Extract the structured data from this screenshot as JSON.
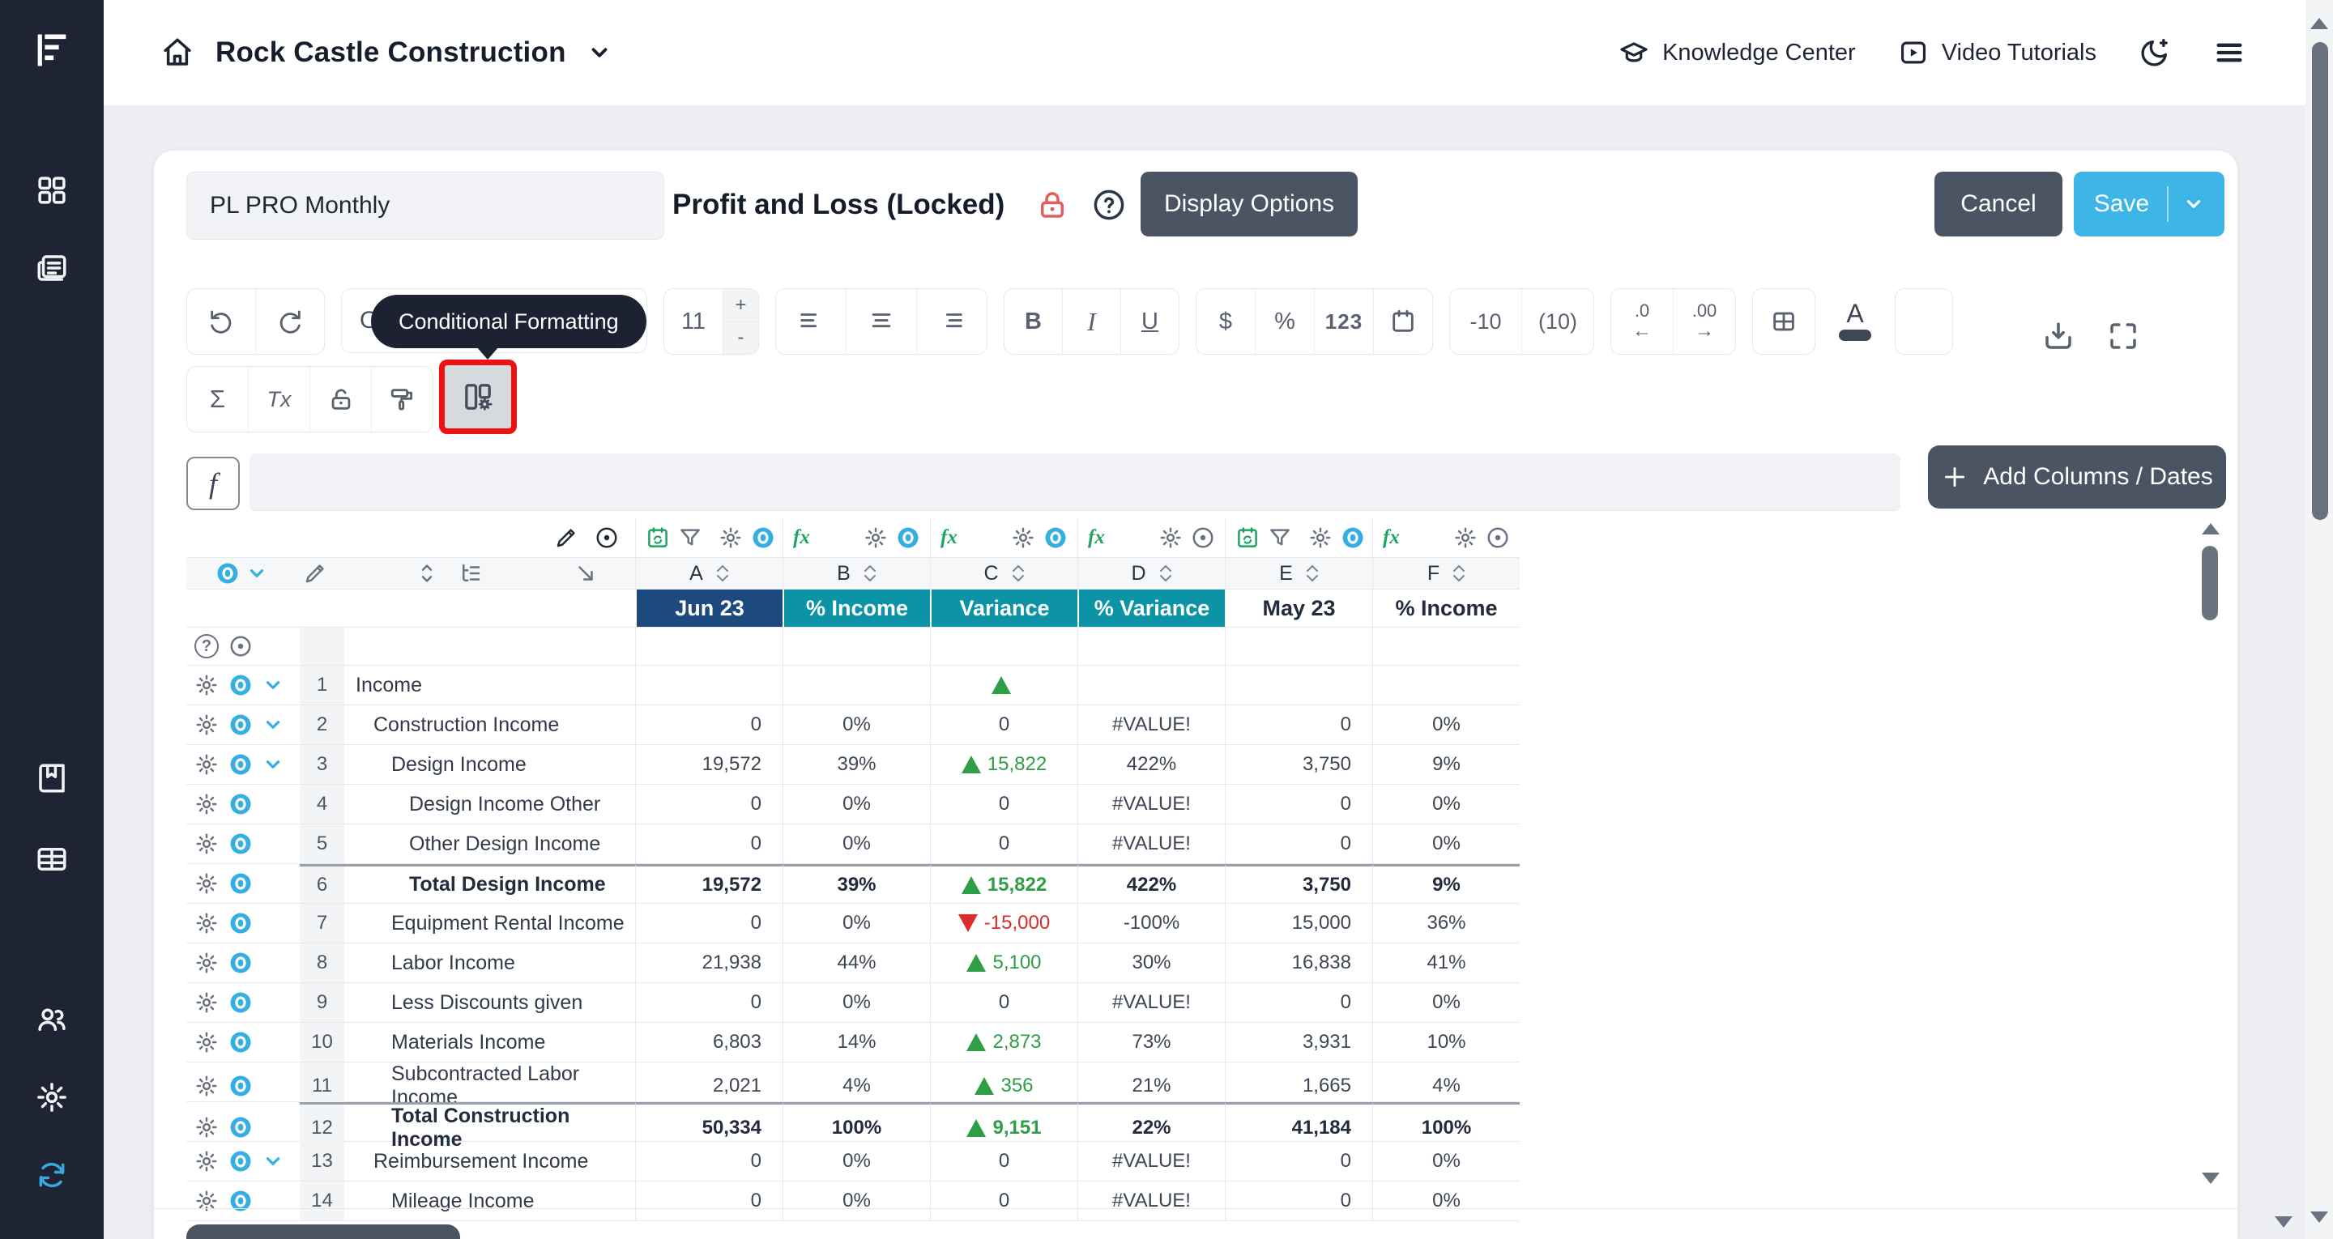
{
  "topbar": {
    "company": "Rock Castle Construction",
    "knowledge_center": "Knowledge Center",
    "video_tutorials": "Video Tutorials"
  },
  "header": {
    "report_name": "PL PRO Monthly",
    "title": "Profit and Loss (Locked)",
    "display_options": "Display Options",
    "cancel": "Cancel",
    "save": "Save"
  },
  "toolbar": {
    "dropdown_label": "Op",
    "tooltip": "Conditional Formatting",
    "font_size": "11",
    "size_plus": "+",
    "size_minus": "-",
    "bold_label": "B",
    "italic_label": "I",
    "underline_label": "U",
    "currency_label": "$",
    "percent_label": "%",
    "number_label": "123",
    "negative_red": "-10",
    "negative_paren": "(10)",
    "decimal_decrease": ".0",
    "decimal_increase": ".00",
    "arrow_left": "←",
    "arrow_right": "→",
    "sum_label": "Σ",
    "clear_format_label": "Tx",
    "text_color_label": "A",
    "formula_label": "f",
    "fx_label": "fx"
  },
  "panel": {
    "add_columns": "Add Columns / Dates"
  },
  "table": {
    "columns": [
      {
        "letter": "A",
        "header": "Jun 23",
        "style": "navy"
      },
      {
        "letter": "B",
        "header": "% Income",
        "style": "teal"
      },
      {
        "letter": "C",
        "header": "Variance",
        "style": "teal"
      },
      {
        "letter": "D",
        "header": "% Variance",
        "style": "teal"
      },
      {
        "letter": "E",
        "header": "May 23",
        "style": "plain"
      },
      {
        "letter": "F",
        "header": "% Income",
        "style": "plain"
      }
    ],
    "rows": [
      {
        "num": "1",
        "label": "Income",
        "indent": 0,
        "chevron": true,
        "bold": false,
        "total": false,
        "cells": [
          {
            "v": ""
          },
          {
            "v": ""
          },
          {
            "v": "",
            "t": "up"
          },
          {
            "v": ""
          },
          {
            "v": ""
          },
          {
            "v": ""
          }
        ]
      },
      {
        "num": "2",
        "label": "Construction Income",
        "indent": 1,
        "chevron": true,
        "bold": false,
        "total": false,
        "cells": [
          {
            "v": "0"
          },
          {
            "v": "0%"
          },
          {
            "v": "0"
          },
          {
            "v": "#VALUE!"
          },
          {
            "v": "0"
          },
          {
            "v": "0%"
          }
        ]
      },
      {
        "num": "3",
        "label": "Design Income",
        "indent": 2,
        "chevron": true,
        "bold": false,
        "total": false,
        "cells": [
          {
            "v": "19,572"
          },
          {
            "v": "39%"
          },
          {
            "v": "15,822",
            "t": "up"
          },
          {
            "v": "422%"
          },
          {
            "v": "3,750"
          },
          {
            "v": "9%"
          }
        ]
      },
      {
        "num": "4",
        "label": "Design Income Other",
        "indent": 3,
        "chevron": false,
        "bold": false,
        "total": false,
        "cells": [
          {
            "v": "0"
          },
          {
            "v": "0%"
          },
          {
            "v": "0"
          },
          {
            "v": "#VALUE!"
          },
          {
            "v": "0"
          },
          {
            "v": "0%"
          }
        ]
      },
      {
        "num": "5",
        "label": "Other Design Income",
        "indent": 3,
        "chevron": false,
        "bold": false,
        "total": false,
        "cells": [
          {
            "v": "0"
          },
          {
            "v": "0%"
          },
          {
            "v": "0"
          },
          {
            "v": "#VALUE!"
          },
          {
            "v": "0"
          },
          {
            "v": "0%"
          }
        ]
      },
      {
        "num": "6",
        "label": "Total Design Income",
        "indent": 3,
        "chevron": false,
        "bold": true,
        "total": true,
        "cells": [
          {
            "v": "19,572"
          },
          {
            "v": "39%"
          },
          {
            "v": "15,822",
            "t": "up"
          },
          {
            "v": "422%"
          },
          {
            "v": "3,750"
          },
          {
            "v": "9%"
          }
        ]
      },
      {
        "num": "7",
        "label": "Equipment Rental Income",
        "indent": 2,
        "chevron": false,
        "bold": false,
        "total": false,
        "cells": [
          {
            "v": "0"
          },
          {
            "v": "0%"
          },
          {
            "v": "-15,000",
            "t": "down"
          },
          {
            "v": "-100%"
          },
          {
            "v": "15,000"
          },
          {
            "v": "36%"
          }
        ]
      },
      {
        "num": "8",
        "label": "Labor Income",
        "indent": 2,
        "chevron": false,
        "bold": false,
        "total": false,
        "cells": [
          {
            "v": "21,938"
          },
          {
            "v": "44%"
          },
          {
            "v": "5,100",
            "t": "up"
          },
          {
            "v": "30%"
          },
          {
            "v": "16,838"
          },
          {
            "v": "41%"
          }
        ]
      },
      {
        "num": "9",
        "label": "Less Discounts given",
        "indent": 2,
        "chevron": false,
        "bold": false,
        "total": false,
        "cells": [
          {
            "v": "0"
          },
          {
            "v": "0%"
          },
          {
            "v": "0"
          },
          {
            "v": "#VALUE!"
          },
          {
            "v": "0"
          },
          {
            "v": "0%"
          }
        ]
      },
      {
        "num": "10",
        "label": "Materials Income",
        "indent": 2,
        "chevron": false,
        "bold": false,
        "total": false,
        "cells": [
          {
            "v": "6,803"
          },
          {
            "v": "14%"
          },
          {
            "v": "2,873",
            "t": "up"
          },
          {
            "v": "73%"
          },
          {
            "v": "3,931"
          },
          {
            "v": "10%"
          }
        ]
      },
      {
        "num": "11",
        "label": "Subcontracted Labor Income",
        "indent": 2,
        "chevron": false,
        "bold": false,
        "total": false,
        "cells": [
          {
            "v": "2,021"
          },
          {
            "v": "4%"
          },
          {
            "v": "356",
            "t": "up"
          },
          {
            "v": "21%"
          },
          {
            "v": "1,665"
          },
          {
            "v": "4%"
          }
        ]
      },
      {
        "num": "12",
        "label": "Total Construction Income",
        "indent": 2,
        "chevron": false,
        "bold": true,
        "total": true,
        "cells": [
          {
            "v": "50,334"
          },
          {
            "v": "100%"
          },
          {
            "v": "9,151",
            "t": "up"
          },
          {
            "v": "22%"
          },
          {
            "v": "41,184"
          },
          {
            "v": "100%"
          }
        ]
      },
      {
        "num": "13",
        "label": "Reimbursement Income",
        "indent": 1,
        "chevron": true,
        "bold": false,
        "total": false,
        "cells": [
          {
            "v": "0"
          },
          {
            "v": "0%"
          },
          {
            "v": "0"
          },
          {
            "v": "#VALUE!"
          },
          {
            "v": "0"
          },
          {
            "v": "0%"
          }
        ]
      },
      {
        "num": "14",
        "label": "Mileage Income",
        "indent": 2,
        "chevron": false,
        "bold": false,
        "total": false,
        "cells": [
          {
            "v": "0"
          },
          {
            "v": "0%"
          },
          {
            "v": "0"
          },
          {
            "v": "#VALUE!"
          },
          {
            "v": "0"
          },
          {
            "v": "0%"
          }
        ]
      }
    ]
  },
  "colors": {
    "sidebar_bg": "#1e2433",
    "save_blue": "#3db5e6",
    "slate_button": "#4b5463",
    "highlight_red": "#ee1111",
    "tooltip_bg": "#1c2231",
    "header_navy": "#1d4a7e",
    "header_teal": "#0d93a6",
    "positive_green": "#2f9e44",
    "negative_red": "#d92b2b",
    "icon_blue": "#35aee2",
    "icon_green": "#1fa463"
  },
  "sidebar": {
    "icons": [
      "dashboard",
      "reports",
      "book",
      "spreadsheet",
      "users",
      "settings",
      "sync"
    ]
  }
}
